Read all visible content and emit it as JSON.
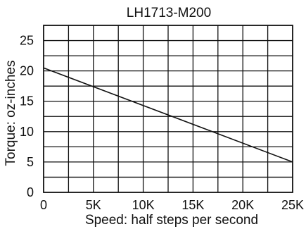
{
  "chart_data": {
    "type": "line",
    "title": "LH1713-M200",
    "xlabel": "Speed: half steps per second",
    "ylabel": "Torque: oz-inches",
    "xlim": [
      0,
      25000
    ],
    "ylim": [
      0,
      27.5
    ],
    "x_ticks": [
      0,
      5000,
      10000,
      15000,
      20000,
      25000
    ],
    "x_tick_labels": [
      "0",
      "5K",
      "10K",
      "15K",
      "20K",
      "25K"
    ],
    "y_ticks": [
      0,
      5,
      10,
      15,
      20,
      25
    ],
    "y_tick_labels": [
      "0",
      "5",
      "10",
      "15",
      "20",
      "25"
    ],
    "grid": true,
    "series": [
      {
        "x": [
          0,
          25000
        ],
        "y": [
          20.5,
          5
        ]
      }
    ],
    "colors": {
      "line": "#111111",
      "grid": "#111111",
      "background": "#ffffff"
    }
  }
}
